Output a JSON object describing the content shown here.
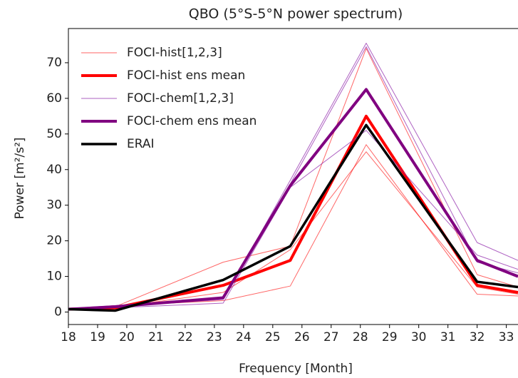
{
  "chart_data": {
    "type": "line",
    "title": "QBO (5°S-5°N power spectrum)",
    "x_label": "Frequency [Month]",
    "y_label": "Power [m²/s²]",
    "x": [
      18,
      19.6,
      23.3,
      25.6,
      28.2,
      32,
      33.4
    ],
    "xlim": [
      18,
      33.4
    ],
    "ylim": [
      -3.5,
      79.6
    ],
    "xticks": [
      18,
      19,
      20,
      21,
      22,
      23,
      24,
      25,
      26,
      27,
      28,
      29,
      30,
      31,
      32,
      33
    ],
    "yticks": [
      0,
      10,
      20,
      30,
      40,
      50,
      60,
      70
    ],
    "legend": "upper left",
    "series": [
      {
        "name": "FOCI-hist[1,2,3]",
        "color": "#ff0000",
        "width": 1,
        "opacity": 0.6,
        "members": [
          [
            0.8,
            1.5,
            14,
            18.5,
            74,
            10.5,
            7
          ],
          [
            0.8,
            1.8,
            3.2,
            7.3,
            47,
            5,
            4.5
          ],
          [
            1,
            1.3,
            5.5,
            17.5,
            45,
            7,
            5
          ]
        ]
      },
      {
        "name": "FOCI-hist ens mean",
        "color": "#ff0000",
        "width": 4,
        "opacity": 1,
        "values": [
          0.8,
          1.2,
          7.5,
          14.5,
          55,
          7.5,
          5.5
        ]
      },
      {
        "name": "FOCI-chem[1,2,3]",
        "color": "#8b1fa8",
        "width": 1,
        "opacity": 0.7,
        "members": [
          [
            0.8,
            1.5,
            3.5,
            37,
            75.5,
            19.5,
            14.5
          ],
          [
            0.8,
            1.2,
            2.5,
            35,
            51,
            16,
            12
          ],
          [
            1,
            1.8,
            4,
            36,
            74.5,
            14,
            11
          ]
        ]
      },
      {
        "name": "FOCI-chem ens mean",
        "color": "#800080",
        "width": 4,
        "opacity": 1,
        "values": [
          0.8,
          1.5,
          4,
          35.5,
          62.5,
          14.5,
          10
        ]
      },
      {
        "name": "ERAI",
        "color": "#000000",
        "width": 3.5,
        "opacity": 1,
        "values": [
          0.8,
          0.4,
          9,
          18.5,
          52.5,
          8.5,
          7
        ]
      }
    ]
  }
}
